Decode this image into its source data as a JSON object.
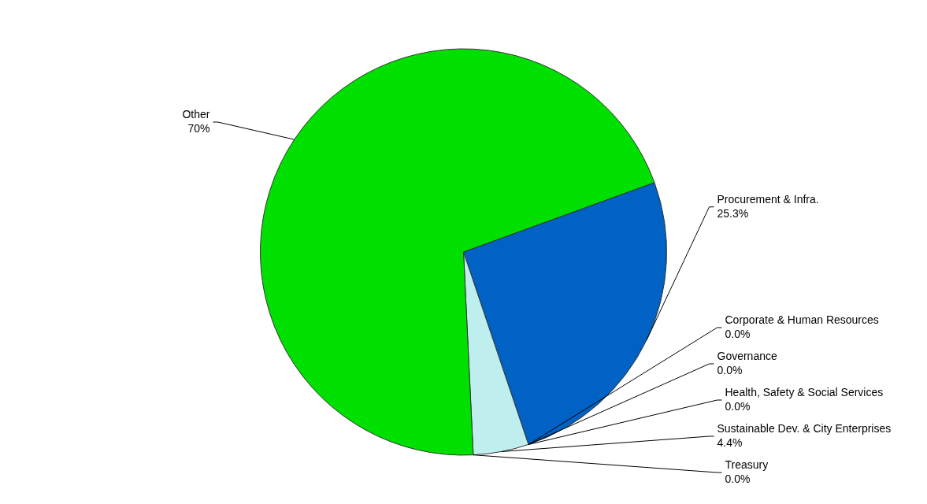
{
  "chart_data": {
    "type": "pie",
    "categories": [
      "Procurement & Infra.",
      "Corporate & Human Resources",
      "Governance",
      "Health, Safety & Social Services",
      "Sustainable Dev. & City Enterprises",
      "Treasury",
      "Other"
    ],
    "values": [
      25.3,
      0.0,
      0.0,
      0.0,
      4.4,
      0.0,
      70
    ],
    "colors": [
      "#0062c4",
      "#2a2a6a",
      "#505050",
      "#8b5a00",
      "#bfeeee",
      "#3a0000",
      "#00e000"
    ],
    "value_labels": [
      "25.3%",
      "0.0%",
      "0.0%",
      "0.0%",
      "4.4%",
      "0.0%",
      "70%"
    ],
    "legend": false
  }
}
